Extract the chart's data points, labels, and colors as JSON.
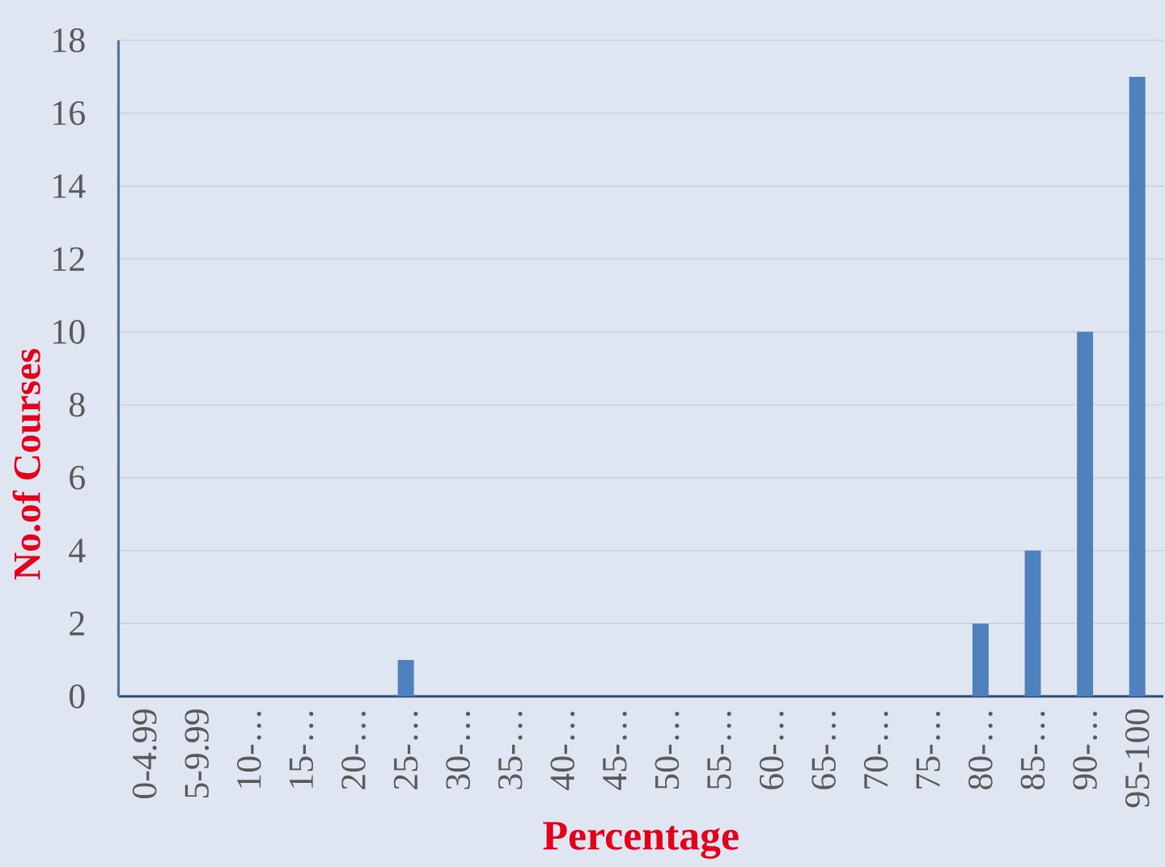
{
  "chart_data": {
    "type": "bar",
    "xlabel": "Percentage",
    "ylabel": "No.of Courses",
    "categories": [
      "0-4.99",
      "5-9.99",
      "10-…",
      "15-…",
      "20-…",
      "25-…",
      "30-…",
      "35-…",
      "40-…",
      "45-…",
      "50-…",
      "55-…",
      "60-…",
      "65-…",
      "70-…",
      "75-…",
      "80-…",
      "85-…",
      "90-…",
      "95-100"
    ],
    "values": [
      0,
      0,
      0,
      0,
      0,
      1,
      0,
      0,
      0,
      0,
      0,
      0,
      0,
      0,
      0,
      0,
      2,
      4,
      10,
      17
    ],
    "color": "#4f81bd",
    "ylim": [
      0,
      18
    ],
    "yticks": [
      0,
      2,
      4,
      6,
      8,
      10,
      12,
      14,
      16,
      18
    ],
    "grid": "y"
  }
}
